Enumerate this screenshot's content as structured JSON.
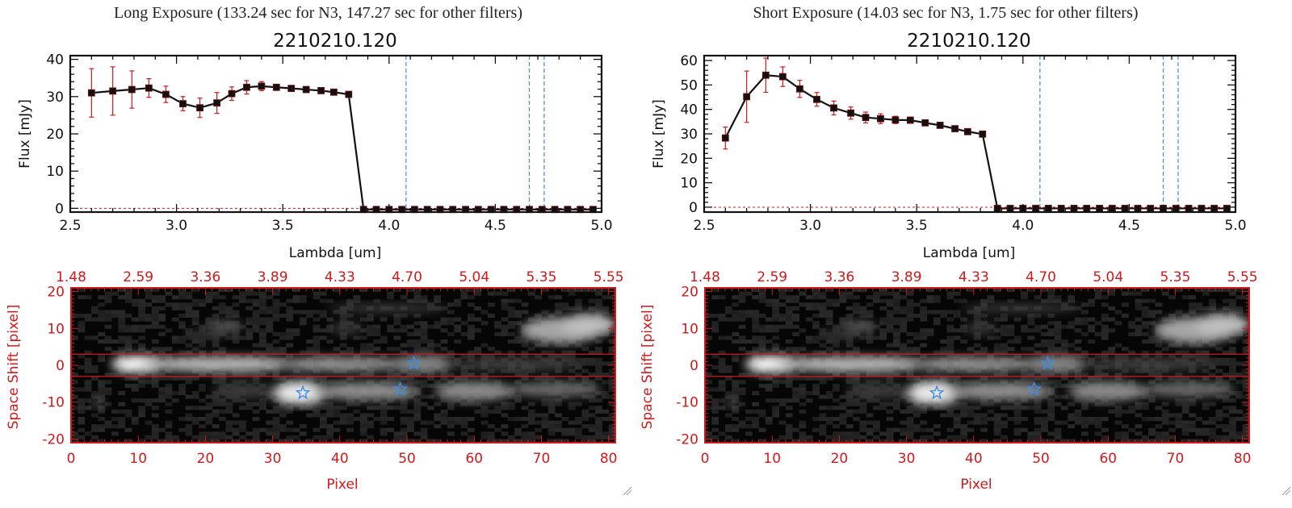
{
  "panels": [
    {
      "id": "long",
      "caption": "Long Exposure (133.24 sec for N3, 147.27 sec for other filters)",
      "spectrum": {
        "title": "2210210.120",
        "xlabel": "Lambda [um]",
        "ylabel": "Flux [mJy]"
      },
      "image": {
        "xlabel": "Pixel",
        "ylabel": "Space Shift [pixel]"
      }
    },
    {
      "id": "short",
      "caption": "Short Exposure (14.03 sec for N3, 1.75 sec for other filters)",
      "spectrum": {
        "title": "2210210.120",
        "xlabel": "Lambda [um]",
        "ylabel": "Flux [mJy]"
      },
      "image": {
        "xlabel": "Pixel",
        "ylabel": "Space Shift [pixel]"
      }
    }
  ],
  "colors": {
    "line": "#111111",
    "marker": "#111111",
    "errorbar": "#d0191b",
    "axis_red": "#d0191b",
    "vline": "#3a8ee6",
    "star": "#3a8ee6",
    "zeroline": "#d0191b"
  },
  "chart_data": [
    {
      "type": "line",
      "panel": "long",
      "title": "2210210.120",
      "xlabel": "Lambda [um]",
      "ylabel": "Flux [mJy]",
      "xlim": [
        2.5,
        5.0
      ],
      "ylim": [
        -1,
        41
      ],
      "xticks": [
        2.5,
        3.0,
        3.5,
        4.0,
        4.5,
        5.0
      ],
      "xticklabels": [
        "2.5",
        "3.0",
        "3.5",
        "4.0",
        "4.5",
        "5.0"
      ],
      "yticks": [
        0,
        10,
        20,
        30,
        40
      ],
      "yticklabels": [
        "0",
        "10",
        "20",
        "30",
        "40"
      ],
      "vlines": [
        4.08,
        4.66,
        4.73
      ],
      "series": [
        {
          "name": "flux",
          "x": [
            2.6,
            2.7,
            2.79,
            2.87,
            2.95,
            3.03,
            3.11,
            3.19,
            3.26,
            3.33,
            3.4,
            3.47,
            3.54,
            3.61,
            3.68,
            3.74,
            3.81,
            3.88,
            3.94,
            4.0,
            4.06,
            4.12,
            4.18,
            4.24,
            4.3,
            4.36,
            4.42,
            4.48,
            4.54,
            4.6,
            4.66,
            4.72,
            4.78,
            4.84,
            4.9,
            4.96
          ],
          "y": [
            31,
            31.5,
            31.9,
            32.3,
            30.6,
            28.1,
            27,
            28.3,
            30.8,
            32.5,
            32.8,
            32.5,
            32.2,
            31.9,
            31.6,
            31.2,
            30.6,
            -0.3,
            -0.3,
            -0.3,
            -0.3,
            -0.3,
            -0.3,
            -0.3,
            -0.3,
            -0.3,
            -0.3,
            -0.3,
            -0.3,
            -0.3,
            -0.3,
            -0.3,
            -0.3,
            -0.3,
            -0.3,
            -0.3
          ],
          "yerr": [
            6.5,
            6.5,
            5,
            2.5,
            2.2,
            1.9,
            2.6,
            2.8,
            1.8,
            1.8,
            1.2,
            0.8,
            0.6,
            0.6,
            0.6,
            0.6,
            0.6,
            0,
            0,
            0,
            0,
            0,
            0,
            0,
            0,
            0,
            0,
            0,
            0,
            0,
            0,
            0,
            0,
            0,
            0,
            0
          ]
        }
      ]
    },
    {
      "type": "line",
      "panel": "short",
      "title": "2210210.120",
      "xlabel": "Lambda [um]",
      "ylabel": "Flux [mJy]",
      "xlim": [
        2.5,
        5.0
      ],
      "ylim": [
        -2,
        62
      ],
      "xticks": [
        2.5,
        3.0,
        3.5,
        4.0,
        4.5,
        5.0
      ],
      "xticklabels": [
        "2.5",
        "3.0",
        "3.5",
        "4.0",
        "4.5",
        "5.0"
      ],
      "yticks": [
        0,
        10,
        20,
        30,
        40,
        50,
        60
      ],
      "yticklabels": [
        "0",
        "10",
        "20",
        "30",
        "40",
        "50",
        "60"
      ],
      "vlines": [
        4.08,
        4.66,
        4.73
      ],
      "series": [
        {
          "name": "flux",
          "x": [
            2.6,
            2.7,
            2.79,
            2.87,
            2.95,
            3.03,
            3.11,
            3.19,
            3.26,
            3.33,
            3.4,
            3.47,
            3.54,
            3.61,
            3.68,
            3.74,
            3.81,
            3.88,
            3.94,
            4.0,
            4.06,
            4.12,
            4.18,
            4.24,
            4.3,
            4.36,
            4.42,
            4.48,
            4.54,
            4.6,
            4.66,
            4.72,
            4.78,
            4.84,
            4.9,
            4.96
          ],
          "y": [
            28.3,
            45.2,
            54,
            53.4,
            48.4,
            44.1,
            40.6,
            38.5,
            36.7,
            36.2,
            35.7,
            35.6,
            34.5,
            33.5,
            32.1,
            30.9,
            29.9,
            -0.5,
            -0.5,
            -0.5,
            -0.5,
            -0.5,
            -0.5,
            -0.5,
            -0.5,
            -0.5,
            -0.5,
            -0.5,
            -0.5,
            -0.5,
            -0.5,
            -0.5,
            -0.5,
            -0.5,
            -0.5,
            -0.5
          ],
          "yerr": [
            4.5,
            10.5,
            7,
            4,
            3.5,
            2.8,
            2.8,
            2.5,
            2.2,
            2,
            1.5,
            1.2,
            1,
            1,
            1,
            1,
            1,
            0,
            0,
            0,
            0,
            0,
            0,
            0,
            0,
            0,
            0,
            0,
            0,
            0,
            0,
            0,
            0,
            0,
            0,
            0
          ]
        }
      ]
    },
    {
      "type": "heatmap",
      "panel": "long",
      "xlabel": "Pixel",
      "ylabel": "Space Shift [pixel]",
      "xlim": [
        0,
        81
      ],
      "ylim": [
        -21,
        21
      ],
      "xticks": [
        0,
        10,
        20,
        30,
        40,
        50,
        60,
        70,
        80
      ],
      "xticklabels": [
        "0",
        "10",
        "20",
        "30",
        "40",
        "50",
        "60",
        "70",
        "80"
      ],
      "yticks": [
        -20,
        -10,
        0,
        10,
        20
      ],
      "yticklabels": [
        "-20",
        "-10",
        "0",
        "10",
        "20"
      ],
      "top_ticklabels": [
        "1.48",
        "2.59",
        "3.36",
        "3.89",
        "4.33",
        "4.70",
        "5.04",
        "5.35",
        "5.55"
      ],
      "extraction_window": [
        -3,
        3
      ],
      "stars": [
        [
          51,
          0.5
        ],
        [
          34.5,
          -7.5
        ],
        [
          49,
          -6.5
        ]
      ]
    },
    {
      "type": "heatmap",
      "panel": "short",
      "xlabel": "Pixel",
      "ylabel": "Space Shift [pixel]",
      "xlim": [
        0,
        81
      ],
      "ylim": [
        -21,
        21
      ],
      "xticks": [
        0,
        10,
        20,
        30,
        40,
        50,
        60,
        70,
        80
      ],
      "xticklabels": [
        "0",
        "10",
        "20",
        "30",
        "40",
        "50",
        "60",
        "70",
        "80"
      ],
      "yticks": [
        -20,
        -10,
        0,
        10,
        20
      ],
      "yticklabels": [
        "-20",
        "-10",
        "0",
        "10",
        "20"
      ],
      "top_ticklabels": [
        "1.48",
        "2.59",
        "3.36",
        "3.89",
        "4.33",
        "4.70",
        "5.04",
        "5.35",
        "5.55"
      ],
      "extraction_window": [
        -3,
        3
      ],
      "stars": [
        [
          51,
          0.5
        ],
        [
          34.5,
          -7.5
        ],
        [
          49,
          -6.5
        ]
      ]
    }
  ]
}
